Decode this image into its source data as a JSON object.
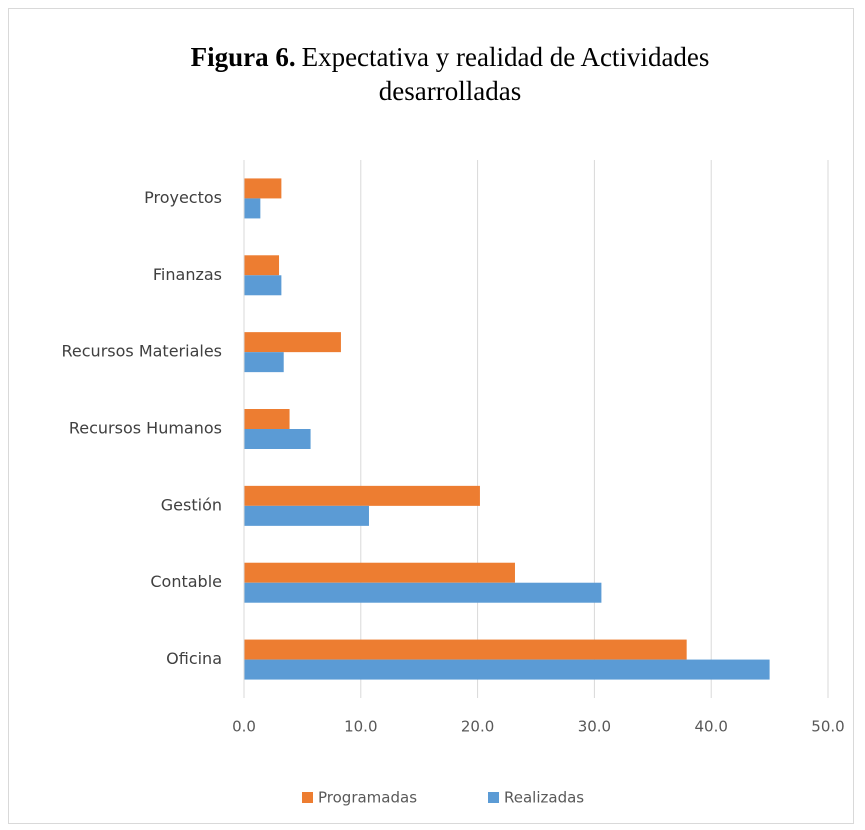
{
  "chart_data": {
    "type": "barh",
    "title_prefix": "Figura   6.",
    "title": "Expectativa y realidad de Actividades desarrolladas",
    "categories": [
      "Oficina",
      "Contable",
      "Gestión",
      "Recursos Humanos",
      "Recursos Materiales",
      "Finanzas",
      "Proyectos"
    ],
    "series": [
      {
        "name": "Programadas",
        "color": "#ed7d31",
        "values": [
          37.9,
          23.2,
          20.2,
          3.9,
          8.3,
          3.0,
          3.2
        ]
      },
      {
        "name": "Realizadas",
        "color": "#5b9bd5",
        "values": [
          45.0,
          30.6,
          10.7,
          5.7,
          3.4,
          3.2,
          1.4
        ]
      }
    ],
    "xlim": [
      0,
      50
    ],
    "xticks": [
      {
        "value": 0,
        "label": "0.0"
      },
      {
        "value": 10,
        "label": "10.0"
      },
      {
        "value": 20,
        "label": "20.0"
      },
      {
        "value": 30,
        "label": "30.0"
      },
      {
        "value": 40,
        "label": "40.0"
      },
      {
        "value": 50,
        "label": "50.0"
      }
    ],
    "grid": true
  }
}
